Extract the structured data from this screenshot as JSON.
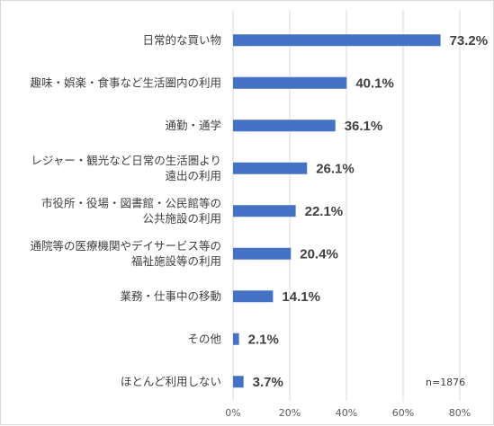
{
  "chart_data": {
    "type": "bar",
    "orientation": "horizontal",
    "categories": [
      [
        "日常的な買い物"
      ],
      [
        "趣味・娯楽・食事など生活圏内の利用"
      ],
      [
        "通勤・通学"
      ],
      [
        "レジャー・観光など日常の生活圏より",
        "遠出の利用"
      ],
      [
        "市役所・役場・図書館・公民館等の",
        "公共施設の利用"
      ],
      [
        "通院等の医療機関やデイサービス等の",
        "福祉施設等の利用"
      ],
      [
        "業務・仕事中の移動"
      ],
      [
        "その他"
      ],
      [
        "ほとんど利用しない"
      ]
    ],
    "values": [
      73.2,
      40.1,
      36.1,
      26.1,
      22.1,
      20.4,
      14.1,
      2.1,
      3.7
    ],
    "value_labels": [
      "73.2%",
      "40.1%",
      "36.1%",
      "26.1%",
      "22.1%",
      "20.4%",
      "14.1%",
      "2.1%",
      "3.7%"
    ],
    "xlim": [
      0,
      80
    ],
    "x_ticks": [
      0,
      20,
      40,
      60,
      80
    ],
    "x_tick_labels": [
      "0%",
      "20%",
      "40%",
      "60%",
      "80%"
    ],
    "grid": true,
    "bar_color": "#4472c4",
    "grid_color": "#d9d9d9",
    "annotation": "n=1876"
  }
}
